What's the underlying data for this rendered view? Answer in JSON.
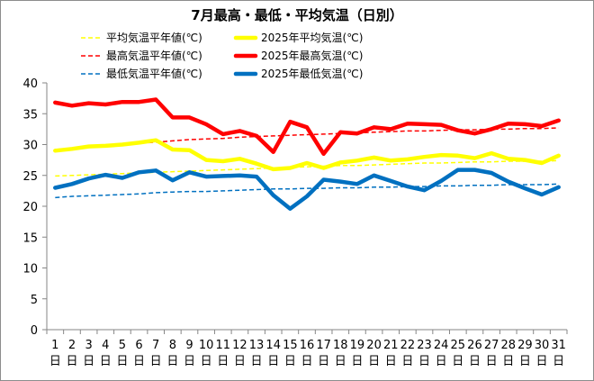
{
  "chart_data": {
    "type": "line",
    "title": "7月最高・最低・平均気温（日別）",
    "xlabel": "",
    "ylabel": "",
    "ylim": [
      0,
      40
    ],
    "yticks": [
      0,
      5,
      10,
      15,
      20,
      25,
      30,
      35,
      40
    ],
    "grid": false,
    "legend_position": "top",
    "x": [
      1,
      2,
      3,
      4,
      5,
      6,
      7,
      8,
      9,
      10,
      11,
      12,
      13,
      14,
      15,
      16,
      17,
      18,
      19,
      20,
      21,
      22,
      23,
      24,
      25,
      26,
      27,
      28,
      29,
      30,
      31
    ],
    "x_unit": "日",
    "series": [
      {
        "name": "平均気温平年値(℃)",
        "color": "#ffff00",
        "style": "dashed",
        "width": "thin",
        "values": [
          24.9,
          25.0,
          25.1,
          25.2,
          25.3,
          25.4,
          25.5,
          25.6,
          25.7,
          25.8,
          25.9,
          26.0,
          26.1,
          26.2,
          26.3,
          26.4,
          26.5,
          26.6,
          26.6,
          26.7,
          26.8,
          26.9,
          27.0,
          27.0,
          27.1,
          27.2,
          27.2,
          27.3,
          27.3,
          27.3,
          27.4
        ]
      },
      {
        "name": "2025年平均気温(℃)",
        "color": "#ffff00",
        "style": "solid",
        "width": "thick",
        "values": [
          29.0,
          29.3,
          29.7,
          29.8,
          30.0,
          30.3,
          30.7,
          29.2,
          29.1,
          27.5,
          27.3,
          27.7,
          26.9,
          26.0,
          26.2,
          27.0,
          26.2,
          27.1,
          27.4,
          27.9,
          27.4,
          27.6,
          28.0,
          28.3,
          28.2,
          27.8,
          28.6,
          27.7,
          27.5,
          27.0,
          28.2
        ]
      },
      {
        "name": "最高気温平年値(℃)",
        "color": "#ff0000",
        "style": "dashed",
        "width": "thin",
        "values": [
          29.2,
          29.4,
          29.6,
          29.8,
          30.0,
          30.2,
          30.4,
          30.6,
          30.8,
          30.9,
          31.0,
          31.2,
          31.3,
          31.4,
          31.5,
          31.6,
          31.7,
          31.8,
          31.9,
          32.0,
          32.1,
          32.2,
          32.2,
          32.3,
          32.4,
          32.4,
          32.5,
          32.5,
          32.6,
          32.6,
          32.7
        ]
      },
      {
        "name": "2025年最高気温(℃)",
        "color": "#ff0000",
        "style": "solid",
        "width": "thick",
        "values": [
          36.8,
          36.3,
          36.7,
          36.5,
          36.9,
          36.9,
          37.3,
          34.4,
          34.4,
          33.3,
          31.7,
          32.2,
          31.4,
          28.8,
          33.7,
          32.8,
          28.5,
          32.0,
          31.8,
          32.8,
          32.5,
          33.4,
          33.3,
          33.2,
          32.3,
          31.8,
          32.5,
          33.4,
          33.3,
          33.0,
          33.9
        ]
      },
      {
        "name": "最低気温平年値(℃)",
        "color": "#0070c0",
        "style": "dashed",
        "width": "thin",
        "values": [
          21.4,
          21.6,
          21.7,
          21.8,
          21.9,
          22.0,
          22.2,
          22.3,
          22.4,
          22.4,
          22.5,
          22.6,
          22.7,
          22.8,
          22.8,
          22.9,
          22.9,
          23.0,
          23.0,
          23.1,
          23.1,
          23.2,
          23.2,
          23.3,
          23.3,
          23.4,
          23.4,
          23.5,
          23.5,
          23.5,
          23.6
        ]
      },
      {
        "name": "2025年最低気温(℃)",
        "color": "#0070c0",
        "style": "solid",
        "width": "thick",
        "values": [
          23.0,
          23.6,
          24.5,
          25.1,
          24.6,
          25.5,
          25.8,
          24.2,
          25.5,
          24.8,
          24.9,
          25.0,
          24.8,
          21.8,
          19.6,
          21.6,
          24.3,
          24.0,
          23.6,
          25.0,
          24.1,
          23.2,
          22.6,
          24.1,
          25.9,
          25.9,
          25.4,
          24.0,
          22.9,
          21.9,
          23.1
        ]
      }
    ]
  }
}
